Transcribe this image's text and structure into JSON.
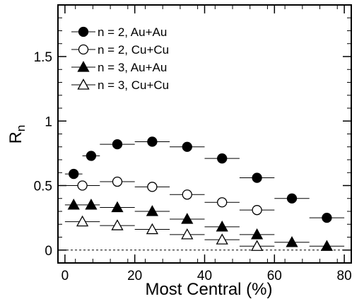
{
  "chart_data": {
    "type": "scatter",
    "title": "",
    "xlabel": "Most Central (%)",
    "ylabel_main": "R",
    "ylabel_sub": "n",
    "xlim": [
      -2,
      82
    ],
    "ylim": [
      -0.1,
      1.9
    ],
    "x_ticks": [
      0,
      20,
      40,
      60,
      80
    ],
    "x_tick_labels": [
      "0",
      "20",
      "40",
      "60",
      "80"
    ],
    "y_ticks": [
      0,
      0.5,
      1,
      1.5
    ],
    "y_tick_labels": [
      "0",
      "0.5",
      "1",
      "1.5"
    ],
    "reference_line_y": 0,
    "legend_position": "top-left",
    "series": [
      {
        "name": "n = 2, Au+Au",
        "marker": "circle",
        "filled": true,
        "points": [
          {
            "x": 2.5,
            "xlo": 0,
            "xhi": 5,
            "y": 0.59
          },
          {
            "x": 7.5,
            "xlo": 5,
            "xhi": 10,
            "y": 0.73
          },
          {
            "x": 15,
            "xlo": 10,
            "xhi": 20,
            "y": 0.82
          },
          {
            "x": 25,
            "xlo": 20,
            "xhi": 30,
            "y": 0.84
          },
          {
            "x": 35,
            "xlo": 30,
            "xhi": 40,
            "y": 0.8
          },
          {
            "x": 45,
            "xlo": 40,
            "xhi": 50,
            "y": 0.71
          },
          {
            "x": 55,
            "xlo": 50,
            "xhi": 60,
            "y": 0.56
          },
          {
            "x": 65,
            "xlo": 60,
            "xhi": 70,
            "y": 0.4
          },
          {
            "x": 75,
            "xlo": 70,
            "xhi": 80,
            "y": 0.25
          }
        ]
      },
      {
        "name": "n = 2, Cu+Cu",
        "marker": "circle",
        "filled": false,
        "points": [
          {
            "x": 5,
            "xlo": 0,
            "xhi": 10,
            "y": 0.5
          },
          {
            "x": 15,
            "xlo": 10,
            "xhi": 20,
            "y": 0.53
          },
          {
            "x": 25,
            "xlo": 20,
            "xhi": 30,
            "y": 0.49
          },
          {
            "x": 35,
            "xlo": 30,
            "xhi": 40,
            "y": 0.43
          },
          {
            "x": 45,
            "xlo": 40,
            "xhi": 50,
            "y": 0.37
          },
          {
            "x": 55,
            "xlo": 50,
            "xhi": 60,
            "y": 0.31
          }
        ]
      },
      {
        "name": "n = 3, Au+Au",
        "marker": "triangle",
        "filled": true,
        "points": [
          {
            "x": 2.5,
            "xlo": 0,
            "xhi": 5,
            "y": 0.35
          },
          {
            "x": 7.5,
            "xlo": 5,
            "xhi": 10,
            "y": 0.35
          },
          {
            "x": 15,
            "xlo": 10,
            "xhi": 20,
            "y": 0.33
          },
          {
            "x": 25,
            "xlo": 20,
            "xhi": 30,
            "y": 0.3
          },
          {
            "x": 35,
            "xlo": 30,
            "xhi": 40,
            "y": 0.24
          },
          {
            "x": 45,
            "xlo": 40,
            "xhi": 50,
            "y": 0.18
          },
          {
            "x": 55,
            "xlo": 50,
            "xhi": 60,
            "y": 0.12
          },
          {
            "x": 65,
            "xlo": 60,
            "xhi": 70,
            "y": 0.06
          },
          {
            "x": 75,
            "xlo": 70,
            "xhi": 80,
            "y": 0.03
          }
        ]
      },
      {
        "name": "n = 3, Cu+Cu",
        "marker": "triangle",
        "filled": false,
        "points": [
          {
            "x": 5,
            "xlo": 0,
            "xhi": 10,
            "y": 0.22
          },
          {
            "x": 15,
            "xlo": 10,
            "xhi": 20,
            "y": 0.19
          },
          {
            "x": 25,
            "xlo": 20,
            "xhi": 30,
            "y": 0.16
          },
          {
            "x": 35,
            "xlo": 30,
            "xhi": 40,
            "y": 0.12
          },
          {
            "x": 45,
            "xlo": 40,
            "xhi": 50,
            "y": 0.08
          },
          {
            "x": 55,
            "xlo": 50,
            "xhi": 60,
            "y": 0.03
          }
        ]
      }
    ]
  }
}
